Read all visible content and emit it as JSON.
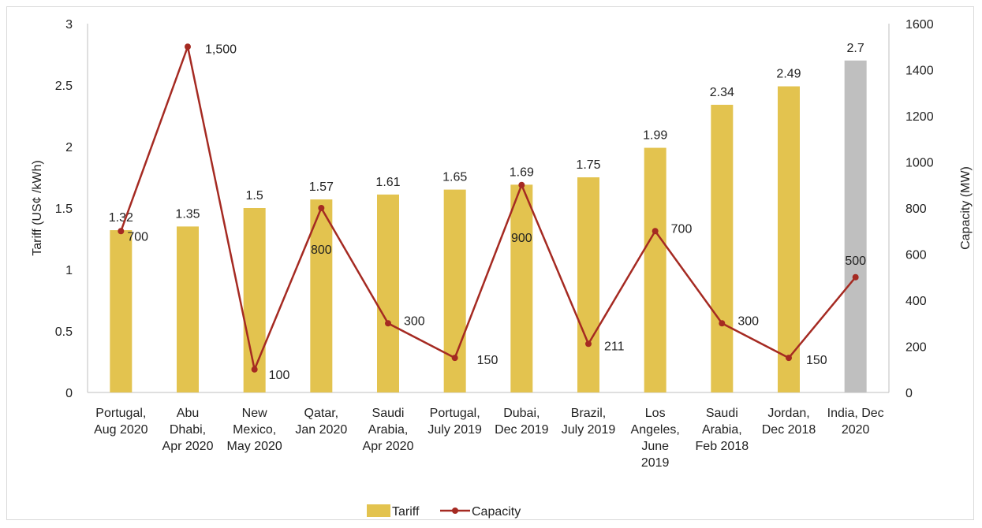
{
  "chart_data": {
    "type": "bar+line",
    "categories": [
      [
        "Portugal,",
        "Aug 2020"
      ],
      [
        "Abu",
        "Dhabi,",
        "Apr 2020"
      ],
      [
        "New",
        "Mexico,",
        "May 2020"
      ],
      [
        "Qatar,",
        "Jan 2020"
      ],
      [
        "Saudi",
        "Arabia,",
        "Apr 2020"
      ],
      [
        "Portugal,",
        "July 2019"
      ],
      [
        "Dubai,",
        "Dec 2019"
      ],
      [
        "Brazil,",
        "July 2019"
      ],
      [
        "Los",
        "Angeles,",
        "June",
        "2019"
      ],
      [
        "Saudi",
        "Arabia,",
        "Feb 2018"
      ],
      [
        "Jordan,",
        "Dec 2018"
      ],
      [
        "India, Dec",
        "2020"
      ]
    ],
    "series": [
      {
        "name": "Tariff",
        "type": "bar",
        "axis": "left",
        "values": [
          1.32,
          1.35,
          1.5,
          1.57,
          1.61,
          1.65,
          1.69,
          1.75,
          1.99,
          2.34,
          2.49,
          2.7
        ],
        "labels": [
          "1.32",
          "1.35",
          "1.5",
          "1.57",
          "1.61",
          "1.65",
          "1.69",
          "1.75",
          "1.99",
          "2.34",
          "2.49",
          "2.7"
        ],
        "color": "#e3c34f",
        "highlight_index": 11,
        "highlight_color": "#bfbfbf"
      },
      {
        "name": "Capacity",
        "type": "line",
        "axis": "right",
        "values": [
          700,
          1500,
          100,
          800,
          300,
          150,
          900,
          211,
          700,
          300,
          150,
          500
        ],
        "labels": [
          "700",
          "1,500",
          "100",
          "800",
          "300",
          "150",
          "900",
          "211",
          "700",
          "300",
          "150",
          "500"
        ],
        "color": "#a52a22"
      }
    ],
    "ylabel": "Tariff (US¢ /kWh)",
    "y2label": "Capacity (MW)",
    "ylim": [
      0,
      3
    ],
    "y2lim": [
      0,
      1600
    ],
    "yticks": [
      "0",
      "0.5",
      "1",
      "1.5",
      "2",
      "2.5",
      "3"
    ],
    "y2ticks": [
      "0",
      "200",
      "400",
      "600",
      "800",
      "1000",
      "1200",
      "1400",
      "1600"
    ],
    "legend": {
      "position": "bottom",
      "entries": [
        "Tariff",
        "Capacity"
      ]
    },
    "grid": false
  }
}
